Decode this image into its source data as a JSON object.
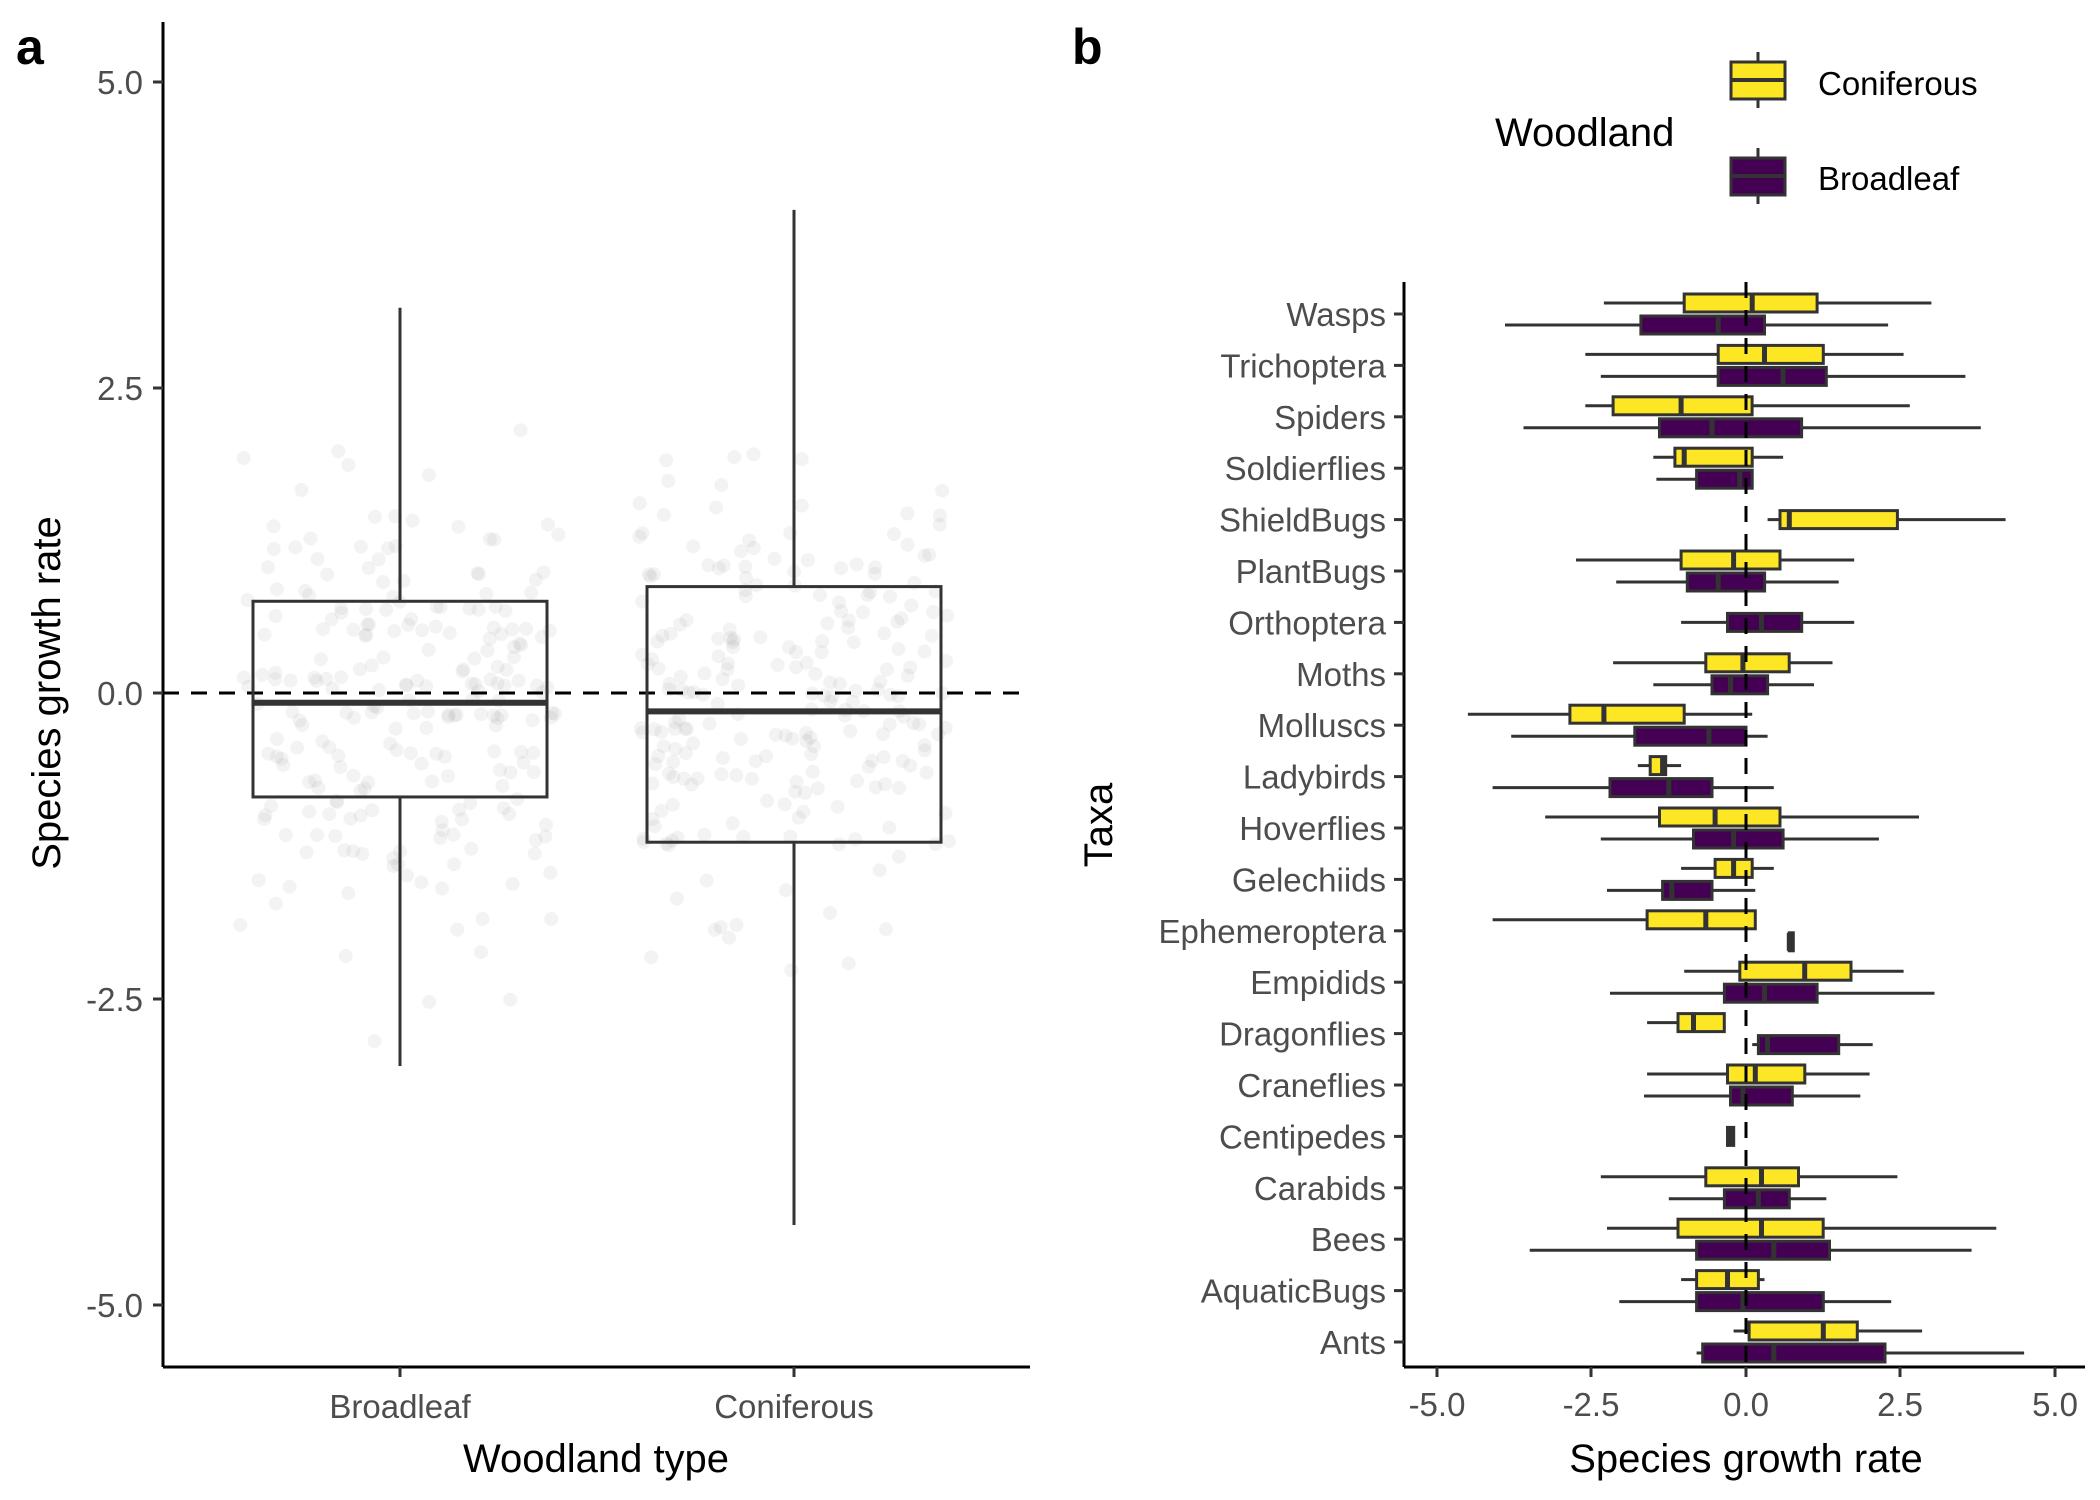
{
  "colors": {
    "coniferous": "#fde725",
    "broadleaf": "#440154",
    "line": "#333333",
    "jitter": "#a0a0a0"
  },
  "panel_a": {
    "label": "a",
    "xlabel": "Woodland type",
    "ylabel": "Species growth rate",
    "yticks": [
      "5.0",
      "2.5",
      "0.0",
      "-2.5",
      "-5.0"
    ]
  },
  "panel_b": {
    "label": "b",
    "xlabel": "Species growth rate",
    "ylabel": "Taxa",
    "xticks": [
      "-5.0",
      "-2.5",
      "0.0",
      "2.5",
      "5.0"
    ],
    "legend": {
      "title": "Woodland",
      "items": [
        "Coniferous",
        "Broadleaf"
      ]
    }
  },
  "chart_data": [
    {
      "type": "box",
      "title": "",
      "xlabel": "Woodland type",
      "ylabel": "Species growth rate",
      "ylim": [
        -5.5,
        5.5
      ],
      "reference_line": 0,
      "jittered_points_shown": true,
      "categories": [
        "Broadleaf",
        "Coniferous"
      ],
      "boxes": [
        {
          "category": "Broadleaf",
          "min": -3.05,
          "q1": -0.85,
          "median": -0.08,
          "q3": 0.75,
          "max": 3.15
        },
        {
          "category": "Coniferous",
          "min": -4.35,
          "q1": -1.22,
          "median": -0.15,
          "q3": 0.87,
          "max": 3.95
        }
      ]
    },
    {
      "type": "box",
      "orientation": "horizontal",
      "title": "",
      "xlabel": "Species growth rate",
      "ylabel": "Taxa",
      "xlim": [
        -5.5,
        5.5
      ],
      "reference_line": 0,
      "legend_title": "Woodland",
      "legend_position": "top-right",
      "taxa": [
        "Wasps",
        "Trichoptera",
        "Spiders",
        "Soldierflies",
        "ShieldBugs",
        "PlantBugs",
        "Orthoptera",
        "Moths",
        "Molluscs",
        "Ladybirds",
        "Hoverflies",
        "Gelechiids",
        "Ephemeroptera",
        "Empidids",
        "Dragonflies",
        "Craneflies",
        "Centipedes",
        "Carabids",
        "Bees",
        "AquaticBugs",
        "Ants"
      ],
      "series": [
        {
          "name": "Coniferous",
          "boxes": [
            [
              -2.3,
              -1.0,
              0.1,
              1.15,
              3.0
            ],
            [
              -2.6,
              -0.45,
              0.3,
              1.25,
              2.55
            ],
            [
              -2.6,
              -2.15,
              -1.05,
              0.1,
              2.65
            ],
            [
              -1.5,
              -1.15,
              -1.0,
              0.1,
              0.6
            ],
            [
              0.35,
              0.55,
              0.7,
              2.45,
              4.2
            ],
            [
              -2.75,
              -1.05,
              -0.2,
              0.55,
              1.75
            ],
            null,
            [
              -2.15,
              -0.65,
              -0.05,
              0.7,
              1.4
            ],
            [
              -4.5,
              -2.85,
              -2.3,
              -1.0,
              0.1
            ],
            [
              -1.75,
              -1.55,
              -1.35,
              -1.3,
              -1.05
            ],
            [
              -3.25,
              -1.4,
              -0.5,
              0.55,
              2.8
            ],
            [
              -1.05,
              -0.5,
              -0.2,
              0.1,
              0.45
            ],
            [
              -4.1,
              -1.6,
              -0.65,
              0.15,
              0.15
            ],
            [
              -1.0,
              -0.1,
              0.95,
              1.7,
              2.55
            ],
            [
              -1.6,
              -1.1,
              -0.85,
              -0.35,
              -0.35
            ],
            [
              -1.6,
              -0.3,
              0.15,
              0.95,
              2.0
            ],
            null,
            [
              -2.35,
              -0.65,
              0.25,
              0.85,
              2.45
            ],
            [
              -2.25,
              -1.1,
              0.25,
              1.25,
              4.05
            ],
            [
              -1.05,
              -0.8,
              -0.3,
              0.2,
              0.3
            ],
            [
              -0.2,
              0.05,
              1.25,
              1.8,
              2.85
            ]
          ]
        },
        {
          "name": "Broadleaf",
          "boxes": [
            [
              -3.9,
              -1.7,
              -0.45,
              0.3,
              2.3
            ],
            [
              -2.35,
              -0.45,
              0.6,
              1.3,
              3.55
            ],
            [
              -3.6,
              -1.4,
              -0.55,
              0.9,
              3.8
            ],
            [
              -1.45,
              -0.8,
              -0.1,
              0.1,
              0.1
            ],
            null,
            [
              -2.1,
              -0.95,
              -0.45,
              0.3,
              1.5
            ],
            [
              -1.05,
              -0.3,
              0.25,
              0.9,
              1.75
            ],
            [
              -1.5,
              -0.55,
              -0.25,
              0.35,
              1.1
            ],
            [
              -3.8,
              -1.8,
              -0.6,
              0.0,
              0.35
            ],
            [
              -4.1,
              -2.2,
              -1.25,
              -0.55,
              0.45
            ],
            [
              -2.35,
              -0.85,
              -0.2,
              0.6,
              2.15
            ],
            [
              -2.25,
              -1.35,
              -1.2,
              -0.55,
              0.15
            ],
            [
              0.7,
              0.7,
              0.7,
              0.75,
              0.75
            ],
            [
              -2.2,
              -0.35,
              0.3,
              1.15,
              3.05
            ],
            [
              0.1,
              0.2,
              0.35,
              1.5,
              2.05
            ],
            [
              -1.65,
              -0.25,
              -0.05,
              0.75,
              1.85
            ],
            [
              -0.3,
              -0.3,
              -0.25,
              -0.2,
              -0.2
            ],
            [
              -1.25,
              -0.35,
              0.2,
              0.7,
              1.3
            ],
            [
              -3.5,
              -0.8,
              0.45,
              1.35,
              3.65
            ],
            [
              -2.05,
              -0.8,
              -0.05,
              1.25,
              2.35
            ],
            [
              -0.8,
              -0.7,
              0.45,
              2.25,
              4.5
            ]
          ]
        }
      ]
    }
  ]
}
